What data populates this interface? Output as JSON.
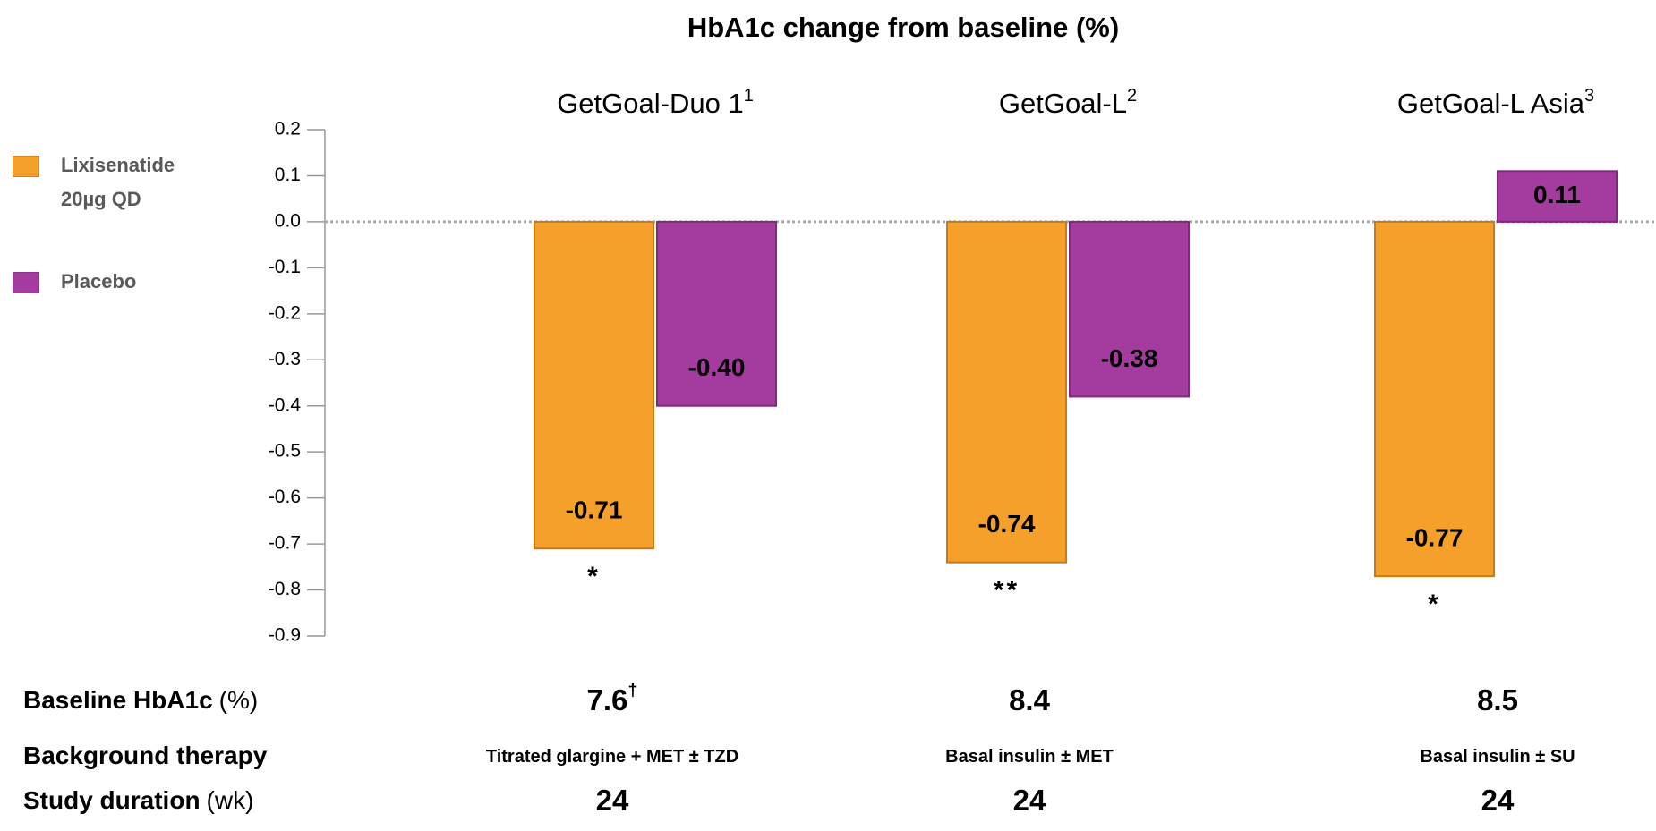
{
  "chart_data": {
    "type": "bar",
    "title": "HbA1c change from baseline (%)",
    "categories": [
      "GetGoal-Duo 1",
      "GetGoal-L",
      "GetGoal-L Asia"
    ],
    "category_refs": [
      "1",
      "2",
      "3"
    ],
    "series": [
      {
        "name": "Lixisenatide 20µg QD",
        "color": "#f5a02a",
        "values": [
          -0.71,
          -0.74,
          -0.77
        ],
        "value_labels": [
          "-0.71",
          "-0.74",
          "-0.77"
        ]
      },
      {
        "name": "Placebo",
        "color": "#a43b9e",
        "values": [
          -0.4,
          -0.38,
          0.11
        ],
        "value_labels": [
          "-0.40",
          "-0.38",
          "0.11"
        ]
      }
    ],
    "significance": [
      "*",
      "**",
      "*"
    ],
    "ylim": [
      -0.9,
      0.2
    ],
    "yticks": [
      0.2,
      0.1,
      {
        "value": 0,
        "label": "0.0"
      },
      -0.1,
      -0.2,
      -0.3,
      -0.4,
      -0.5,
      -0.6,
      -0.7,
      -0.8,
      -0.9
    ],
    "grid": false
  },
  "table": {
    "rows": [
      {
        "label": "Baseline HbA1c",
        "unit": "(%)",
        "values": [
          7.6,
          8.4,
          8.5
        ],
        "footnotes": [
          "†"
        ]
      },
      {
        "label": "Background therapy",
        "values": [
          "Titrated glargine + MET ± TZD",
          "Basal insulin ± MET",
          "Basal insulin ± SU"
        ]
      },
      {
        "label": "Study duration",
        "unit": "(wk)",
        "values": [
          24,
          24,
          24
        ]
      }
    ]
  }
}
